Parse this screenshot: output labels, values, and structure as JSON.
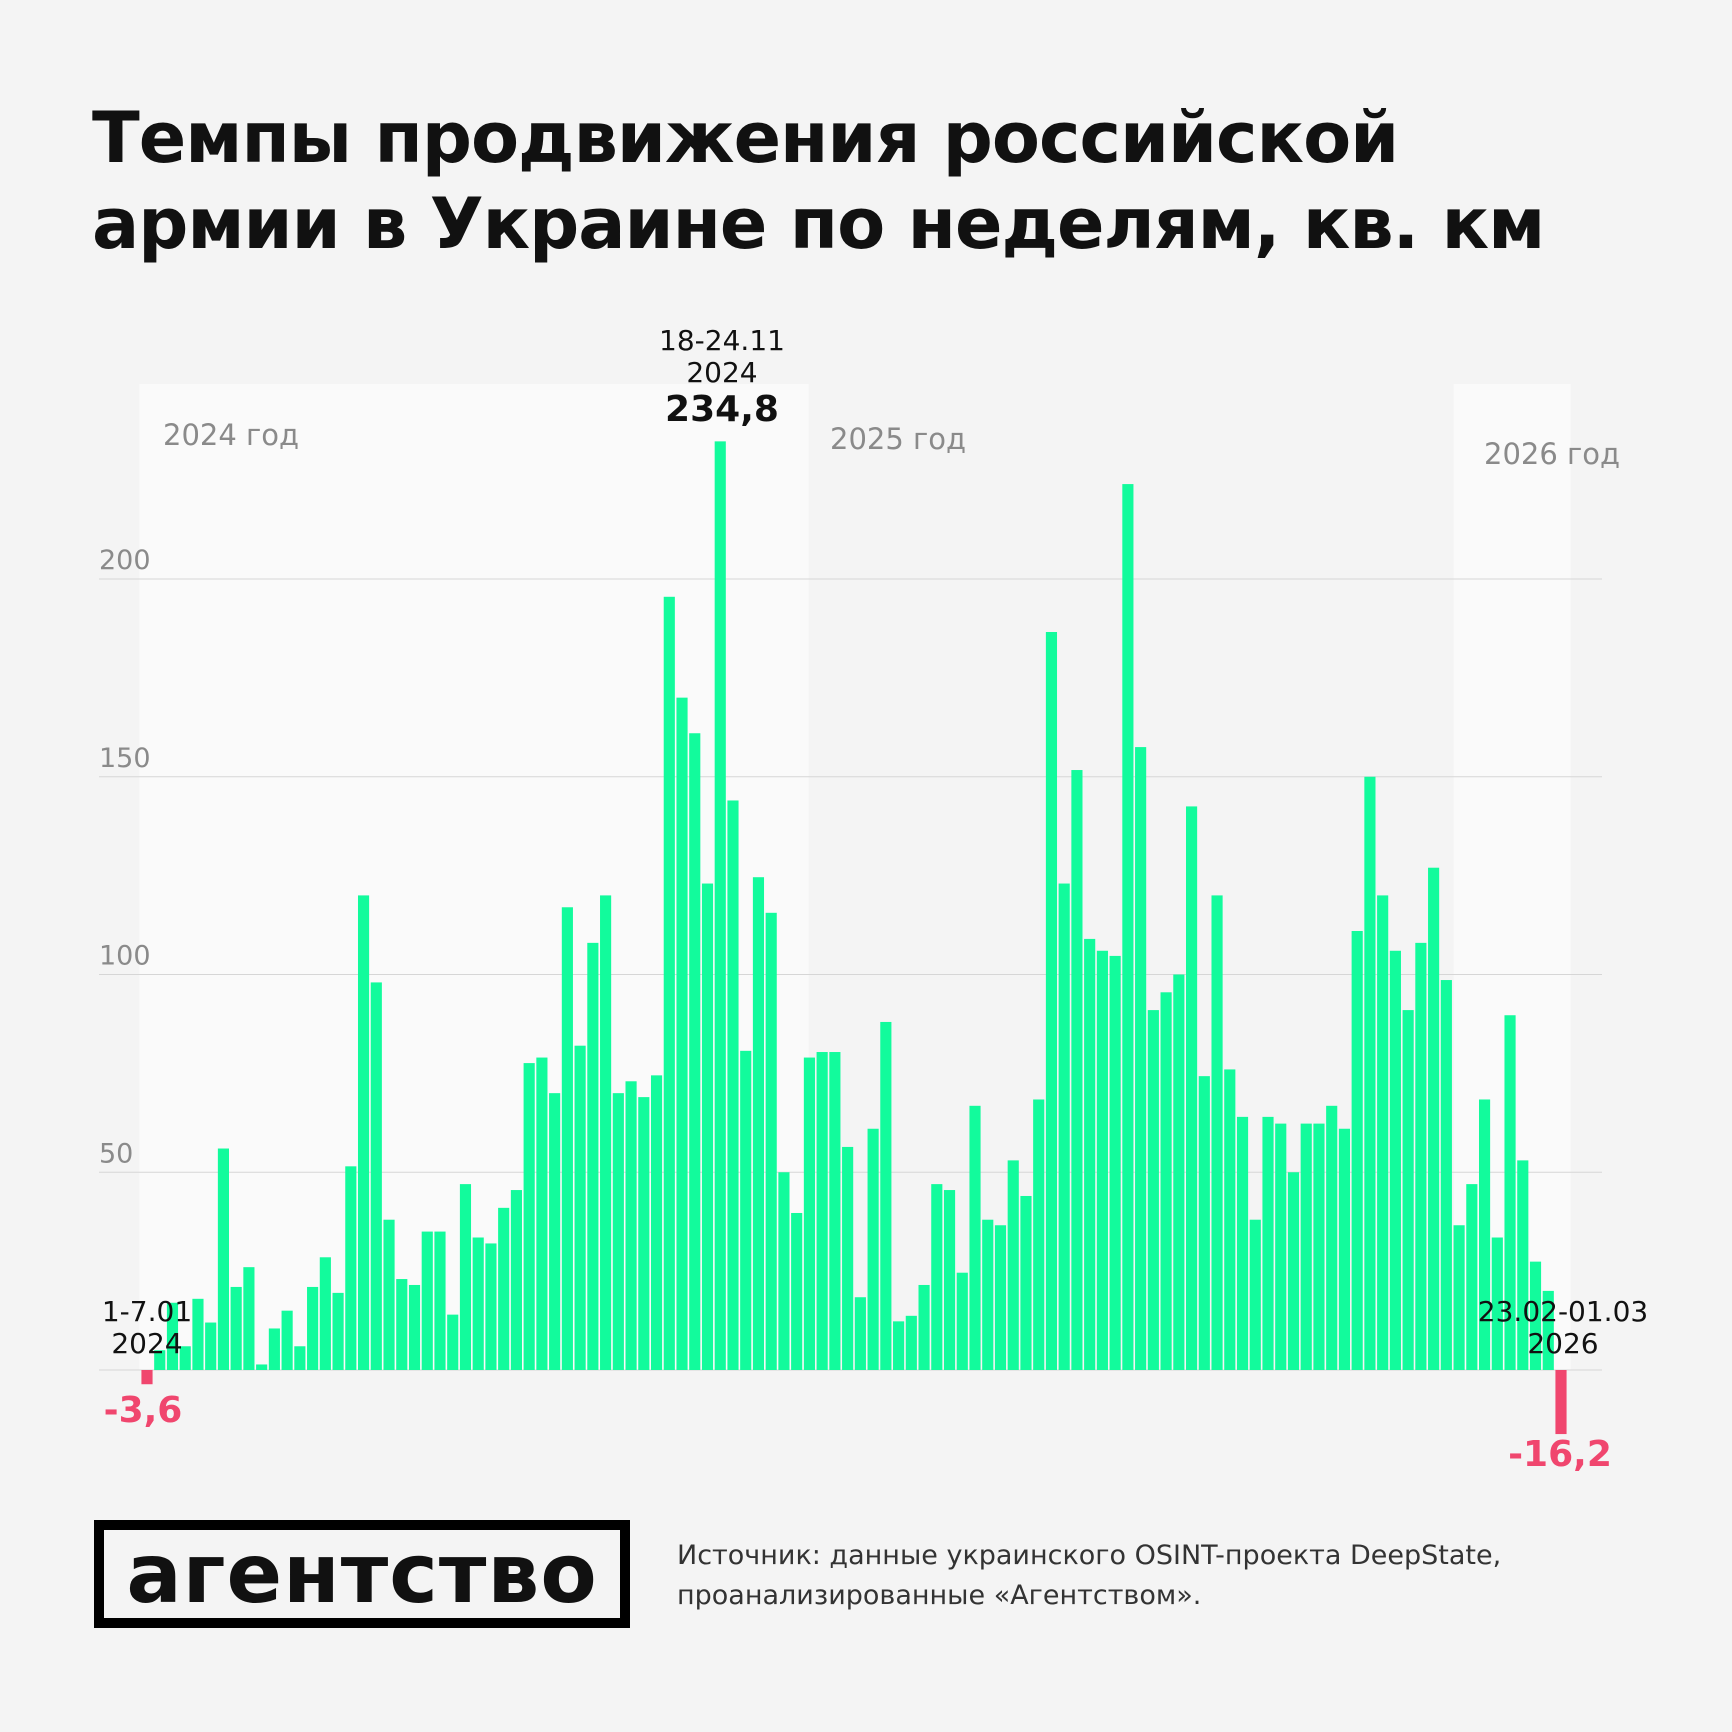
{
  "title_lines": [
    "Темпы продвижения российской",
    "армии в Украине по неделям, кв. км"
  ],
  "chart_data": {
    "type": "bar",
    "title": "Темпы продвижения российской армии в Украине по неделям, кв. км",
    "ylim": [
      -20,
      240
    ],
    "yticks": [
      50,
      100,
      150,
      200
    ],
    "grid": true,
    "colors": {
      "positive": "#12fb9c",
      "negative": "#f0466e",
      "grid": "#d6d6d6",
      "year_band": "#fafafa"
    },
    "year_labels": [
      "2024 год",
      "2025 год",
      "2026 год"
    ],
    "values": [
      -3.6,
      5,
      17,
      6,
      18,
      12,
      56,
      21,
      26,
      1.4,
      10.5,
      15,
      6,
      21,
      28.5,
      19.5,
      51.5,
      120,
      98,
      38,
      23,
      21.5,
      35,
      35,
      14,
      47,
      33.5,
      32,
      41,
      45.5,
      77.6,
      79,
      70,
      117,
      82,
      108,
      120,
      70,
      73,
      69,
      74.5,
      195.5,
      170,
      161,
      123,
      234.8,
      144,
      80.7,
      124.6,
      115.6,
      50,
      39.7,
      79,
      80.4,
      80.4,
      56.4,
      18.4,
      61,
      88,
      12.3,
      13.7,
      21.5,
      47,
      45.5,
      24.6,
      66.8,
      38,
      36.6,
      53,
      44,
      68.4,
      186.6,
      123,
      151.7,
      109,
      106,
      104.7,
      224,
      157.5,
      91,
      95.5,
      100,
      142.5,
      74.3,
      120,
      76,
      64,
      38,
      64,
      62.3,
      50,
      62.3,
      62.3,
      66.8,
      61,
      111,
      150,
      120,
      106,
      91,
      108,
      127,
      98.6,
      36.6,
      47,
      68.4,
      33.5,
      89.7,
      53,
      27.4,
      20,
      -16.2
    ],
    "annotations": {
      "first": {
        "date": "1-7.01",
        "year": "2024",
        "value": "-3,6"
      },
      "peak": {
        "date": "18-24.11",
        "year": "2024",
        "value": "234,8"
      },
      "last": {
        "date": "23.02-01.03",
        "year": "2026",
        "value": "-16,2"
      }
    }
  },
  "logo": "агентство",
  "source_lines": [
    "Источник: данные украинского OSINT-проекта DeepState,",
    "проанализированные «Агентством»."
  ]
}
